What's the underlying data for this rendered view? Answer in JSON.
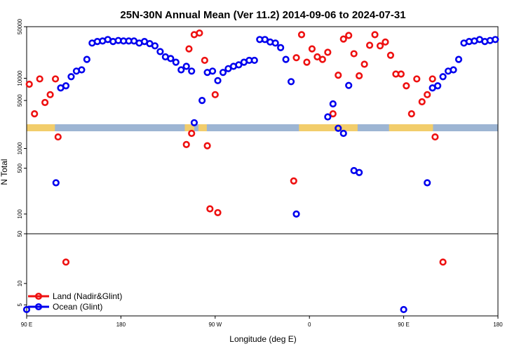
{
  "chart_data": {
    "type": "scatter",
    "title": "25N-30N Annual Mean (Ver 11.2)   2014-09-06 to 2024-07-31",
    "xlabel": "Longitude (deg E)",
    "ylabel": "N Total",
    "xlim": [
      90,
      540
    ],
    "x_ticks": [
      {
        "value": 90,
        "label": "90 E"
      },
      {
        "value": 180,
        "label": "180"
      },
      {
        "value": 270,
        "label": "90 W"
      },
      {
        "value": 360,
        "label": "0"
      },
      {
        "value": 450,
        "label": "90 E"
      },
      {
        "value": 540,
        "label": "180"
      }
    ],
    "panels": [
      {
        "name": "high",
        "ylim": [
          2000,
          50000
        ],
        "scale": "log",
        "ticks": [
          {
            "value": 5000,
            "label": "5000"
          },
          {
            "value": 10000,
            "label": "10000"
          },
          {
            "value": 50000,
            "label": "50000"
          }
        ]
      },
      {
        "name": "mid",
        "ylim": [
          50,
          1700
        ],
        "scale": "log",
        "ticks": [
          {
            "value": 100,
            "label": "100"
          },
          {
            "value": 500,
            "label": "500"
          },
          {
            "value": 1000,
            "label": "1000"
          }
        ]
      },
      {
        "name": "low",
        "ylim": [
          3.5,
          50
        ],
        "scale": "log",
        "ticks": [
          {
            "value": 5,
            "label": "5"
          },
          {
            "value": 10,
            "label": "10"
          },
          {
            "value": 50,
            "label": "50"
          }
        ]
      }
    ],
    "series": [
      {
        "name": "Land (Nadir&Glint)",
        "color": "#ee1111",
        "points": [
          [
            92.5,
            8300
          ],
          [
            97.5,
            3300
          ],
          [
            102.5,
            9800
          ],
          [
            107.5,
            4700
          ],
          [
            112.5,
            6000
          ],
          [
            117.5,
            9800
          ],
          [
            120,
            1500
          ],
          [
            127.5,
            20
          ],
          [
            242.5,
            1150
          ],
          [
            245,
            25000
          ],
          [
            247.5,
            1900
          ],
          [
            250,
            39000
          ],
          [
            255,
            41000
          ],
          [
            260,
            17500
          ],
          [
            262.5,
            1100
          ],
          [
            265,
            120
          ],
          [
            270,
            6000
          ],
          [
            272.5,
            105
          ],
          [
            345,
            320
          ],
          [
            347.5,
            19000
          ],
          [
            352.5,
            39000
          ],
          [
            357.5,
            16500
          ],
          [
            362.5,
            25000
          ],
          [
            367.5,
            19500
          ],
          [
            372.5,
            18000
          ],
          [
            377.5,
            22500
          ],
          [
            382.5,
            3300
          ],
          [
            387.5,
            11000
          ],
          [
            392.5,
            34000
          ],
          [
            397.5,
            38000
          ],
          [
            402.5,
            21500
          ],
          [
            407.5,
            10800
          ],
          [
            412.5,
            15500
          ],
          [
            417.5,
            28000
          ],
          [
            422.5,
            39000
          ],
          [
            427.5,
            27500
          ],
          [
            432.5,
            31000
          ],
          [
            437.5,
            20500
          ],
          [
            442.5,
            11400
          ],
          [
            447.5,
            11400
          ],
          [
            452.5,
            7900
          ],
          [
            457.5,
            3300
          ],
          [
            462.5,
            9800
          ],
          [
            467.5,
            4800
          ],
          [
            472.5,
            6000
          ],
          [
            477.5,
            9800
          ],
          [
            480,
            1500
          ],
          [
            487.5,
            20
          ]
        ]
      },
      {
        "name": "Ocean (Glint)",
        "color": "#0000ee",
        "points": [
          [
            90,
            4.3
          ],
          [
            118,
            300
          ],
          [
            122.5,
            7400
          ],
          [
            127.5,
            7900
          ],
          [
            132.5,
            10500
          ],
          [
            137.5,
            12500
          ],
          [
            142.5,
            13000
          ],
          [
            147.5,
            18000
          ],
          [
            152.5,
            30000
          ],
          [
            157.5,
            31500
          ],
          [
            162.5,
            32000
          ],
          [
            167.5,
            33500
          ],
          [
            172.5,
            31500
          ],
          [
            177.5,
            32500
          ],
          [
            182.5,
            32000
          ],
          [
            187.5,
            32000
          ],
          [
            192.5,
            32000
          ],
          [
            197.5,
            30000
          ],
          [
            202.5,
            31500
          ],
          [
            207.5,
            29500
          ],
          [
            212.5,
            27500
          ],
          [
            217.5,
            23000
          ],
          [
            222.5,
            19500
          ],
          [
            227.5,
            18500
          ],
          [
            232.5,
            16500
          ],
          [
            237.5,
            13000
          ],
          [
            242.5,
            14500
          ],
          [
            247.5,
            12500
          ],
          [
            250,
            2500
          ],
          [
            257.5,
            5000
          ],
          [
            262.5,
            12000
          ],
          [
            267.5,
            12500
          ],
          [
            272.5,
            9300
          ],
          [
            277.5,
            12000
          ],
          [
            282.5,
            13500
          ],
          [
            287.5,
            14500
          ],
          [
            292.5,
            15200
          ],
          [
            297.5,
            16500
          ],
          [
            302.5,
            17500
          ],
          [
            307.5,
            17500
          ],
          [
            312.5,
            33500
          ],
          [
            317.5,
            33500
          ],
          [
            322.5,
            31000
          ],
          [
            327.5,
            30000
          ],
          [
            332.5,
            26000
          ],
          [
            337.5,
            18000
          ],
          [
            342.5,
            9000
          ],
          [
            347.5,
            100
          ],
          [
            377.5,
            3000
          ],
          [
            382.5,
            4500
          ],
          [
            387.5,
            2100
          ],
          [
            392.5,
            1800
          ],
          [
            397.5,
            8000
          ],
          [
            402.5,
            460
          ],
          [
            407.5,
            430
          ],
          [
            472.5,
            300
          ],
          [
            477.5,
            7400
          ],
          [
            482.5,
            7900
          ],
          [
            487.5,
            10500
          ],
          [
            492.5,
            12500
          ],
          [
            497.5,
            13000
          ],
          [
            502.5,
            18000
          ],
          [
            507.5,
            30000
          ],
          [
            512.5,
            31500
          ],
          [
            517.5,
            32000
          ],
          [
            522.5,
            33500
          ],
          [
            527.5,
            31500
          ],
          [
            532.5,
            32500
          ],
          [
            537.5,
            33500
          ],
          [
            450,
            4.3
          ]
        ]
      }
    ],
    "legend": {
      "position": "bottom-left"
    },
    "map_strip": {
      "land_color": "#f2cd6b",
      "ocean_color": "#9db5d3",
      "land_ranges": [
        [
          90,
          117
        ],
        [
          241,
          250
        ],
        [
          254,
          262
        ],
        [
          350,
          406
        ],
        [
          436,
          478
        ]
      ]
    }
  }
}
